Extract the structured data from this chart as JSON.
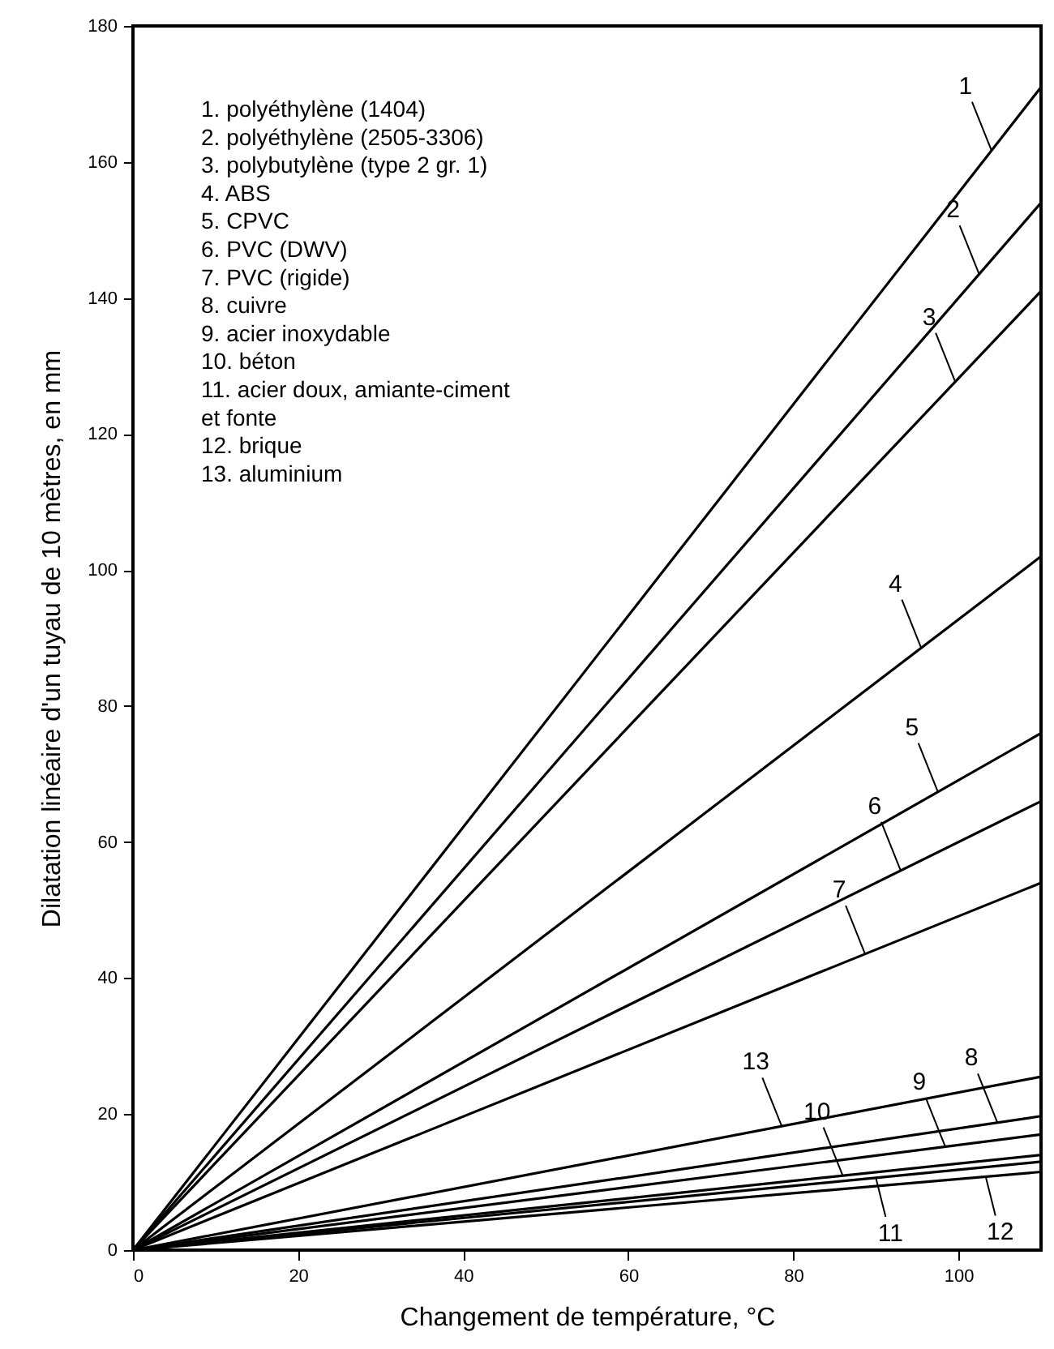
{
  "chart_data": {
    "type": "line",
    "xlabel": "Changement de température, °C",
    "ylabel": "Dilatation linéaire d'un tuyau de 10 mètres, en mm",
    "x": [
      0,
      110
    ],
    "xlim": [
      0,
      110
    ],
    "xticks": [
      0,
      20,
      40,
      60,
      80,
      100
    ],
    "ylim": [
      0,
      180
    ],
    "yticks": [
      0,
      20,
      40,
      60,
      80,
      100,
      120,
      140,
      160,
      180
    ],
    "grid": false,
    "marker": "none",
    "line_style": "solid",
    "series": [
      {
        "color": "#000000",
        "values": [
          0,
          171
        ]
      },
      {
        "color": "#000000",
        "values": [
          0,
          154
        ]
      },
      {
        "color": "#000000",
        "values": [
          0,
          141
        ]
      },
      {
        "color": "#000000",
        "values": [
          0,
          102
        ]
      },
      {
        "color": "#000000",
        "values": [
          0,
          76
        ]
      },
      {
        "color": "#000000",
        "values": [
          0,
          66
        ]
      },
      {
        "color": "#000000",
        "values": [
          0,
          54
        ]
      },
      {
        "color": "#000000",
        "values": [
          0,
          19.7
        ]
      },
      {
        "color": "#000000",
        "values": [
          0,
          17
        ]
      },
      {
        "color": "#000000",
        "values": [
          0,
          14
        ]
      },
      {
        "color": "#000000",
        "values": [
          0,
          13
        ]
      },
      {
        "color": "#000000",
        "values": [
          0,
          11.5
        ]
      },
      {
        "color": "#000000",
        "values": [
          0,
          25.5
        ]
      }
    ],
    "annotations": [
      "1. polyéthylène (1404)",
      "2. polyéthylène (2505-3306)",
      "3. polybutylène (type 2 gr. 1)",
      "4. ABS",
      "5. CPVC",
      "6. PVC (DWV)",
      "7. PVC (rigide)",
      "8. cuivre",
      "9. acier inoxydable",
      "10. béton",
      "11. acier doux, amiante-ciment et fonte",
      "12. brique",
      "13. aluminium",
      {
        "text": "1",
        "x": 104,
        "y": 161.7
      },
      {
        "text": "2",
        "x": 102.5,
        "y": 143.5
      },
      {
        "text": "3",
        "x": 99.6,
        "y": 127.7
      },
      {
        "text": "4",
        "x": 95.5,
        "y": 88.5
      },
      {
        "text": "5",
        "x": 97.5,
        "y": 67.4
      },
      {
        "text": "6",
        "x": 93,
        "y": 55.8
      },
      {
        "text": "7",
        "x": 88.7,
        "y": 43.5
      },
      {
        "text": "8",
        "x": 104.7,
        "y": 18.8
      },
      {
        "text": "9",
        "x": 98.4,
        "y": 15.2
      },
      {
        "text": "10",
        "x": 86,
        "y": 10.9
      },
      {
        "text": "11",
        "x": 90,
        "y": 10.6
      },
      {
        "text": "12",
        "x": 103.3,
        "y": 10.8
      },
      {
        "text": "13",
        "x": 78.6,
        "y": 18.2
      }
    ]
  }
}
